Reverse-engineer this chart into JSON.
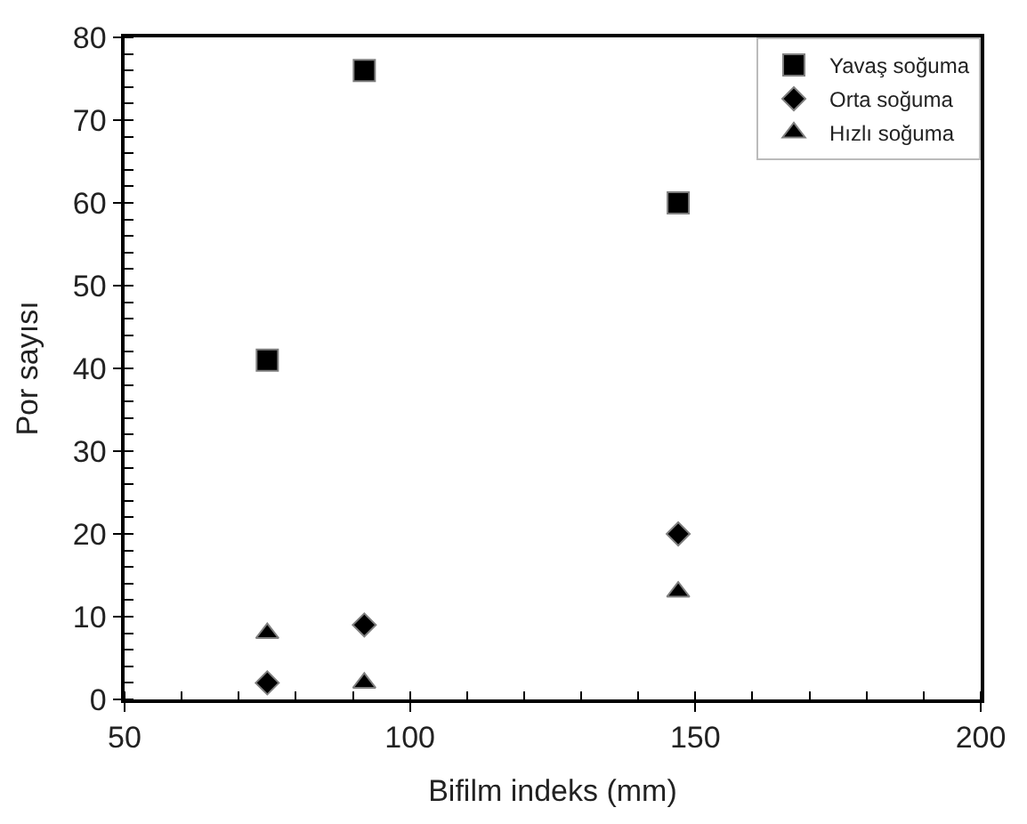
{
  "chart_data": {
    "type": "scatter",
    "xlabel": "Bifilm indeks (mm)",
    "ylabel": "Por sayısı",
    "x": [
      75,
      92,
      147
    ],
    "series": [
      {
        "name": "Yavaş soğuma",
        "color": "#000000",
        "marker": "square",
        "values": [
          41,
          76,
          60
        ]
      },
      {
        "name": "Orta soğuma",
        "color": "#000000",
        "marker": "diamond",
        "values": [
          2,
          9,
          20
        ]
      },
      {
        "name": "Hızlı soğuma",
        "color": "#000000",
        "marker": "triangle",
        "values": [
          8,
          2,
          13
        ]
      }
    ],
    "xlim": [
      50,
      200
    ],
    "xticks": [
      50,
      100,
      150,
      200
    ],
    "ylim": [
      0,
      80
    ],
    "yticks": [
      0,
      10,
      20,
      30,
      40,
      50,
      60,
      70,
      80
    ],
    "legend": "top right"
  }
}
